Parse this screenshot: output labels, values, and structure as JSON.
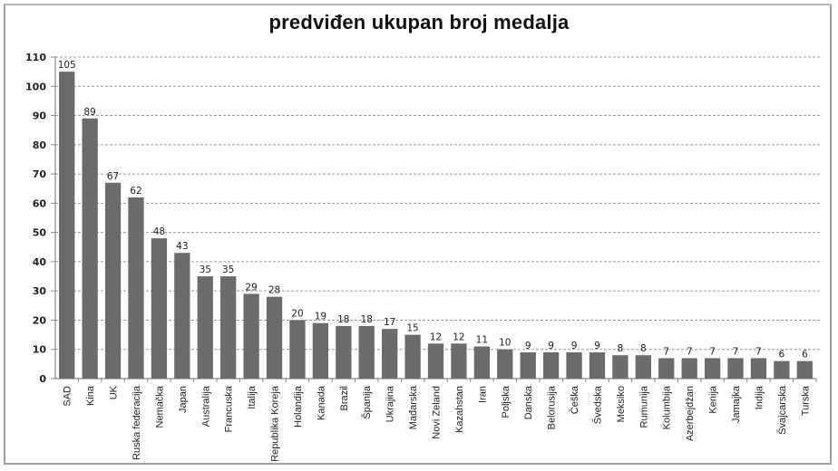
{
  "chart_data": {
    "type": "bar",
    "title": "predviđen ukupan broj medalja",
    "xlabel": "",
    "ylabel": "",
    "ylim": [
      0,
      110
    ],
    "yticks": [
      0,
      10,
      20,
      30,
      40,
      50,
      60,
      70,
      80,
      90,
      100,
      110
    ],
    "grid": true,
    "legend": null,
    "bar_color": "#6b6b6b",
    "categories": [
      "SAD",
      "Kina",
      "UK",
      "Ruska federacija",
      "Nemačka",
      "Japan",
      "Australija",
      "Francuska",
      "Italija",
      "Republika Koreja",
      "Holandija",
      "Kanada",
      "Brazil",
      "Španija",
      "Ukrajina",
      "Mađarska",
      "Novi Zeland",
      "Kazahstan",
      "Iran",
      "Poljska",
      "Danska",
      "Belorusija",
      "Češka",
      "Švedska",
      "Meksiko",
      "Rumunija",
      "Kolumbija",
      "Azerbejdžan",
      "Kenija",
      "Jamajka",
      "Indija",
      "Švajcarska",
      "Turska"
    ],
    "values": [
      105,
      89,
      67,
      62,
      48,
      43,
      35,
      35,
      29,
      28,
      20,
      19,
      18,
      18,
      17,
      15,
      12,
      12,
      11,
      10,
      9,
      9,
      9,
      9,
      8,
      8,
      7,
      7,
      7,
      7,
      7,
      6,
      6
    ]
  }
}
